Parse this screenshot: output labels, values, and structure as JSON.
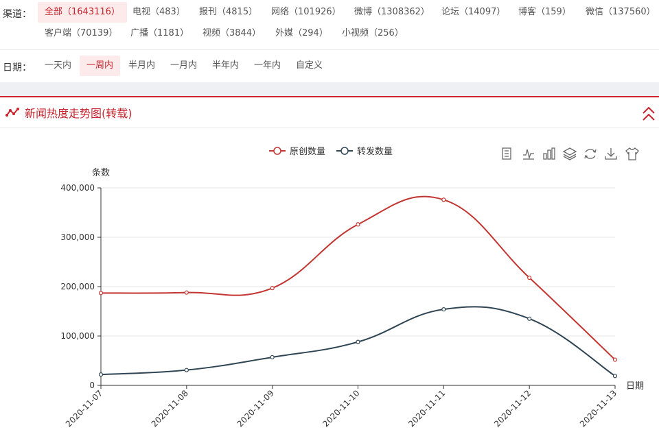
{
  "filters": {
    "channel_label": "渠道：",
    "channels_row1": [
      "全部（1643116）",
      "电视（483）",
      "报刊（4815）",
      "网络（101926）",
      "微博（1308362）",
      "论坛（14097）",
      "博客（159）",
      "微信（137560）"
    ],
    "channels_row2": [
      "客户端（70139）",
      "广播（1181）",
      "视频（3844）",
      "外媒（294）",
      "小视频（256）"
    ],
    "date_label": "日期：",
    "dates": [
      "一天内",
      "一周内",
      "半月内",
      "一月内",
      "半年内",
      "一年内",
      "自定义"
    ]
  },
  "panel": {
    "title": "新闻热度走势图(转载)"
  },
  "toolbar": [
    "data-view-icon",
    "line-chart-icon",
    "bar-chart-icon",
    "stack-icon",
    "refresh-icon",
    "download-icon",
    "theme-icon"
  ],
  "chart_data": {
    "type": "line",
    "ylabel": "条数",
    "xlabel": "日期",
    "ylim": [
      0,
      400000
    ],
    "yticks": [
      "0",
      "100,000",
      "200,000",
      "300,000",
      "400,000"
    ],
    "categories": [
      "2020-11-07",
      "2020-11-08",
      "2020-11-09",
      "2020-11-10",
      "2020-11-11",
      "2020-11-12",
      "2020-11-13"
    ],
    "legend_position": "top-center",
    "series": [
      {
        "name": "原创数量",
        "color": "#c23531",
        "values": [
          187000,
          188000,
          197000,
          326000,
          376000,
          218000,
          52000
        ]
      },
      {
        "name": "转发数量",
        "color": "#2f4554",
        "values": [
          22000,
          31000,
          57000,
          88000,
          154000,
          135000,
          19000
        ]
      }
    ]
  }
}
